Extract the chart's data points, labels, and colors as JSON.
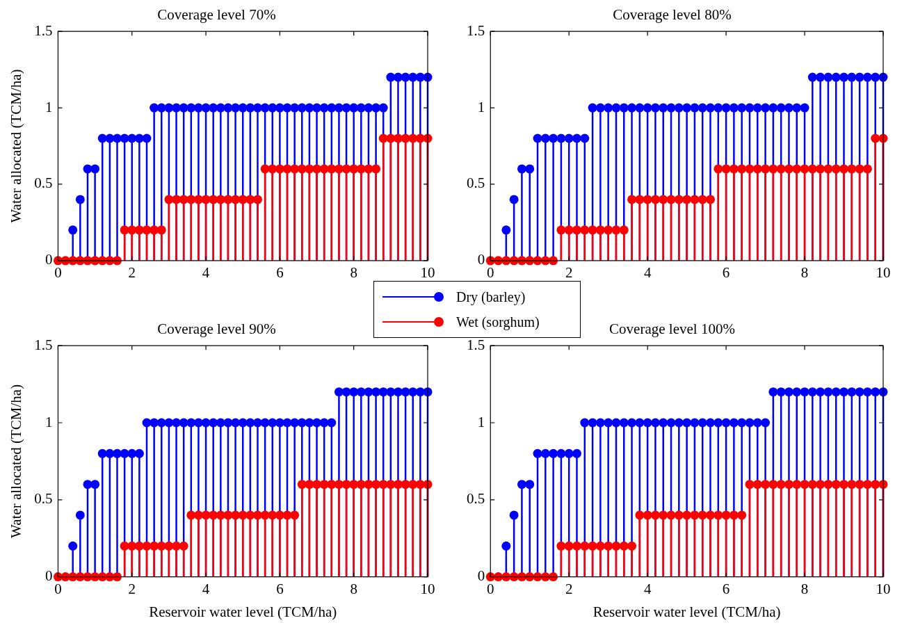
{
  "chart_data": [
    {
      "type": "lollipop",
      "title": "Coverage level 70%",
      "ylabel": "Water allocated (TCM/ha)",
      "xlim": [
        0,
        10
      ],
      "xticks": [
        0,
        2,
        4,
        6,
        8,
        10
      ],
      "ylim": [
        0,
        1.5
      ],
      "yticks": [
        0,
        0.5,
        1,
        1.5
      ],
      "marker": "circle",
      "legend": "bottom right",
      "x": [
        0,
        0.2,
        0.4,
        0.6,
        0.8,
        1,
        1.2,
        1.4,
        1.6,
        1.8,
        2,
        2.2,
        2.4,
        2.6,
        2.8,
        3,
        3.2,
        3.4,
        3.6,
        3.8,
        4,
        4.2,
        4.4,
        4.6,
        4.8,
        5,
        5.2,
        5.4,
        5.6,
        5.8,
        6,
        6.2,
        6.4,
        6.6,
        6.8,
        7,
        7.2,
        7.4,
        7.6,
        7.8,
        8,
        8.2,
        8.4,
        8.6,
        8.8,
        9,
        9.2,
        9.4,
        9.6,
        9.8,
        10
      ],
      "series": [
        {
          "name": "Dry (barley)",
          "color": "#0000ff",
          "values": [
            null,
            null,
            0.2,
            0.4,
            0.6,
            0.6,
            0.8,
            0.8,
            0.8,
            0.8,
            0.8,
            0.8,
            0.8,
            1,
            1,
            1,
            1,
            1,
            1,
            1,
            1,
            1,
            1,
            1,
            1,
            1,
            1,
            1,
            1,
            1,
            1,
            1,
            1,
            1,
            1,
            1,
            1,
            1,
            1,
            1,
            1,
            1,
            1,
            1,
            1,
            1.2,
            1.2,
            1.2,
            1.2,
            1.2,
            1.2
          ]
        },
        {
          "name": "Wet (sorghum)",
          "color": "#ff0000",
          "values": [
            0,
            0,
            0,
            0,
            0,
            0,
            0,
            0,
            0,
            0.2,
            0.2,
            0.2,
            0.2,
            0.2,
            0.2,
            0.4,
            0.4,
            0.4,
            0.4,
            0.4,
            0.4,
            0.4,
            0.4,
            0.4,
            0.4,
            0.4,
            0.4,
            0.4,
            0.6,
            0.6,
            0.6,
            0.6,
            0.6,
            0.6,
            0.6,
            0.6,
            0.6,
            0.6,
            0.6,
            0.6,
            0.6,
            0.6,
            0.6,
            0.6,
            0.8,
            0.8,
            0.8,
            0.8,
            0.8,
            0.8,
            0.8
          ]
        }
      ]
    },
    {
      "type": "lollipop",
      "title": "Coverage level 80%",
      "xlim": [
        0,
        10
      ],
      "xticks": [
        0,
        2,
        4,
        6,
        8,
        10
      ],
      "ylim": [
        0,
        1.5
      ],
      "yticks": [
        0,
        0.5,
        1,
        1.5
      ],
      "marker": "circle",
      "x": [
        0,
        0.2,
        0.4,
        0.6,
        0.8,
        1,
        1.2,
        1.4,
        1.6,
        1.8,
        2,
        2.2,
        2.4,
        2.6,
        2.8,
        3,
        3.2,
        3.4,
        3.6,
        3.8,
        4,
        4.2,
        4.4,
        4.6,
        4.8,
        5,
        5.2,
        5.4,
        5.6,
        5.8,
        6,
        6.2,
        6.4,
        6.6,
        6.8,
        7,
        7.2,
        7.4,
        7.6,
        7.8,
        8,
        8.2,
        8.4,
        8.6,
        8.8,
        9,
        9.2,
        9.4,
        9.6,
        9.8,
        10
      ],
      "series": [
        {
          "color": "#0000ff",
          "values": [
            null,
            null,
            0.2,
            0.4,
            0.6,
            0.6,
            0.8,
            0.8,
            0.8,
            0.8,
            0.8,
            0.8,
            0.8,
            1,
            1,
            1,
            1,
            1,
            1,
            1,
            1,
            1,
            1,
            1,
            1,
            1,
            1,
            1,
            1,
            1,
            1,
            1,
            1,
            1,
            1,
            1,
            1,
            1,
            1,
            1,
            1,
            1.2,
            1.2,
            1.2,
            1.2,
            1.2,
            1.2,
            1.2,
            1.2,
            1.2,
            1.2
          ]
        },
        {
          "color": "#ff0000",
          "values": [
            0,
            0,
            0,
            0,
            0,
            0,
            0,
            0,
            0,
            0.2,
            0.2,
            0.2,
            0.2,
            0.2,
            0.2,
            0.2,
            0.2,
            0.2,
            0.4,
            0.4,
            0.4,
            0.4,
            0.4,
            0.4,
            0.4,
            0.4,
            0.4,
            0.4,
            0.4,
            0.6,
            0.6,
            0.6,
            0.6,
            0.6,
            0.6,
            0.6,
            0.6,
            0.6,
            0.6,
            0.6,
            0.6,
            0.6,
            0.6,
            0.6,
            0.6,
            0.6,
            0.6,
            0.6,
            0.6,
            0.8,
            0.8
          ]
        }
      ]
    },
    {
      "type": "lollipop",
      "title": "Coverage level 90%",
      "xlabel": "Reservoir water level (TCM/ha)",
      "ylabel": "Water allocated (TCM/ha)",
      "xlim": [
        0,
        10
      ],
      "xticks": [
        0,
        2,
        4,
        6,
        8,
        10
      ],
      "ylim": [
        0,
        1.5
      ],
      "yticks": [
        0,
        0.5,
        1,
        1.5
      ],
      "marker": "circle",
      "x": [
        0,
        0.2,
        0.4,
        0.6,
        0.8,
        1,
        1.2,
        1.4,
        1.6,
        1.8,
        2,
        2.2,
        2.4,
        2.6,
        2.8,
        3,
        3.2,
        3.4,
        3.6,
        3.8,
        4,
        4.2,
        4.4,
        4.6,
        4.8,
        5,
        5.2,
        5.4,
        5.6,
        5.8,
        6,
        6.2,
        6.4,
        6.6,
        6.8,
        7,
        7.2,
        7.4,
        7.6,
        7.8,
        8,
        8.2,
        8.4,
        8.6,
        8.8,
        9,
        9.2,
        9.4,
        9.6,
        9.8,
        10
      ],
      "series": [
        {
          "color": "#0000ff",
          "values": [
            null,
            null,
            0.2,
            0.4,
            0.6,
            0.6,
            0.8,
            0.8,
            0.8,
            0.8,
            0.8,
            0.8,
            1,
            1,
            1,
            1,
            1,
            1,
            1,
            1,
            1,
            1,
            1,
            1,
            1,
            1,
            1,
            1,
            1,
            1,
            1,
            1,
            1,
            1,
            1,
            1,
            1,
            1,
            1.2,
            1.2,
            1.2,
            1.2,
            1.2,
            1.2,
            1.2,
            1.2,
            1.2,
            1.2,
            1.2,
            1.2,
            1.2
          ]
        },
        {
          "color": "#ff0000",
          "values": [
            0,
            0,
            0,
            0,
            0,
            0,
            0,
            0,
            0,
            0.2,
            0.2,
            0.2,
            0.2,
            0.2,
            0.2,
            0.2,
            0.2,
            0.2,
            0.4,
            0.4,
            0.4,
            0.4,
            0.4,
            0.4,
            0.4,
            0.4,
            0.4,
            0.4,
            0.4,
            0.4,
            0.4,
            0.4,
            0.4,
            0.6,
            0.6,
            0.6,
            0.6,
            0.6,
            0.6,
            0.6,
            0.6,
            0.6,
            0.6,
            0.6,
            0.6,
            0.6,
            0.6,
            0.6,
            0.6,
            0.6,
            0.6
          ]
        }
      ]
    },
    {
      "type": "lollipop",
      "title": "Coverage level 100%",
      "xlabel": "Reservoir water level (TCM/ha)",
      "xlim": [
        0,
        10
      ],
      "xticks": [
        0,
        2,
        4,
        6,
        8,
        10
      ],
      "ylim": [
        0,
        1.5
      ],
      "yticks": [
        0,
        0.5,
        1,
        1.5
      ],
      "marker": "circle",
      "x": [
        0,
        0.2,
        0.4,
        0.6,
        0.8,
        1,
        1.2,
        1.4,
        1.6,
        1.8,
        2,
        2.2,
        2.4,
        2.6,
        2.8,
        3,
        3.2,
        3.4,
        3.6,
        3.8,
        4,
        4.2,
        4.4,
        4.6,
        4.8,
        5,
        5.2,
        5.4,
        5.6,
        5.8,
        6,
        6.2,
        6.4,
        6.6,
        6.8,
        7,
        7.2,
        7.4,
        7.6,
        7.8,
        8,
        8.2,
        8.4,
        8.6,
        8.8,
        9,
        9.2,
        9.4,
        9.6,
        9.8,
        10
      ],
      "series": [
        {
          "color": "#0000ff",
          "values": [
            null,
            null,
            0.2,
            0.4,
            0.6,
            0.6,
            0.8,
            0.8,
            0.8,
            0.8,
            0.8,
            0.8,
            1,
            1,
            1,
            1,
            1,
            1,
            1,
            1,
            1,
            1,
            1,
            1,
            1,
            1,
            1,
            1,
            1,
            1,
            1,
            1,
            1,
            1,
            1,
            1,
            1.2,
            1.2,
            1.2,
            1.2,
            1.2,
            1.2,
            1.2,
            1.2,
            1.2,
            1.2,
            1.2,
            1.2,
            1.2,
            1.2,
            1.2
          ]
        },
        {
          "color": "#ff0000",
          "values": [
            0,
            0,
            0,
            0,
            0,
            0,
            0,
            0,
            0,
            0.2,
            0.2,
            0.2,
            0.2,
            0.2,
            0.2,
            0.2,
            0.2,
            0.2,
            0.2,
            0.4,
            0.4,
            0.4,
            0.4,
            0.4,
            0.4,
            0.4,
            0.4,
            0.4,
            0.4,
            0.4,
            0.4,
            0.4,
            0.4,
            0.6,
            0.6,
            0.6,
            0.6,
            0.6,
            0.6,
            0.6,
            0.6,
            0.6,
            0.6,
            0.6,
            0.6,
            0.6,
            0.6,
            0.6,
            0.6,
            0.6,
            0.6
          ]
        }
      ]
    }
  ]
}
